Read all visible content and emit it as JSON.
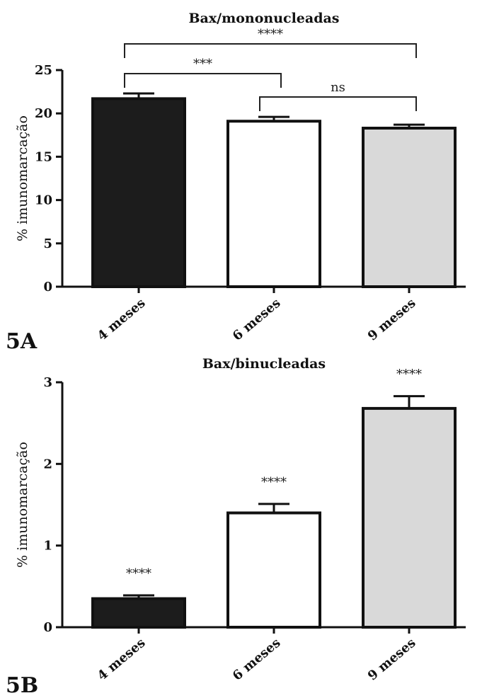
{
  "chart_data": [
    {
      "panel_label": "5A",
      "type": "bar",
      "title": "Bax/mononucleadas",
      "ylabel": "% imunomarcação",
      "xlabel": "",
      "categories": [
        "4 meses",
        "6 meses",
        "9 meses"
      ],
      "values": [
        21.7,
        19.1,
        18.3
      ],
      "errors": [
        0.6,
        0.5,
        0.4
      ],
      "bar_colors": [
        "#1c1c1c",
        "#ffffff",
        "#d9d9d9"
      ],
      "ylim": [
        0,
        25
      ],
      "yticks": [
        "0",
        "5",
        "10",
        "15",
        "20",
        "25"
      ],
      "ytick_values": [
        0,
        5,
        10,
        15,
        20,
        25
      ],
      "grid": false,
      "comparisons": [
        {
          "from": 0,
          "to": 2,
          "label": "****"
        },
        {
          "from": 0,
          "to": 1,
          "label": "***"
        },
        {
          "from": 1,
          "to": 2,
          "label": "ns"
        }
      ],
      "bar_labels": []
    },
    {
      "panel_label": "5B",
      "type": "bar",
      "title": "Bax/binucleadas",
      "ylabel": "% imunomarcação",
      "xlabel": "",
      "categories": [
        "4 meses",
        "6 meses",
        "9 meses"
      ],
      "values": [
        0.35,
        1.4,
        2.68
      ],
      "errors": [
        0.04,
        0.11,
        0.15
      ],
      "bar_colors": [
        "#1c1c1c",
        "#ffffff",
        "#d9d9d9"
      ],
      "ylim": [
        0,
        3
      ],
      "yticks": [
        "0",
        "1",
        "2",
        "3"
      ],
      "ytick_values": [
        0,
        1,
        2,
        3
      ],
      "grid": false,
      "comparisons": [],
      "bar_labels": [
        "****",
        "****",
        "****"
      ]
    }
  ]
}
